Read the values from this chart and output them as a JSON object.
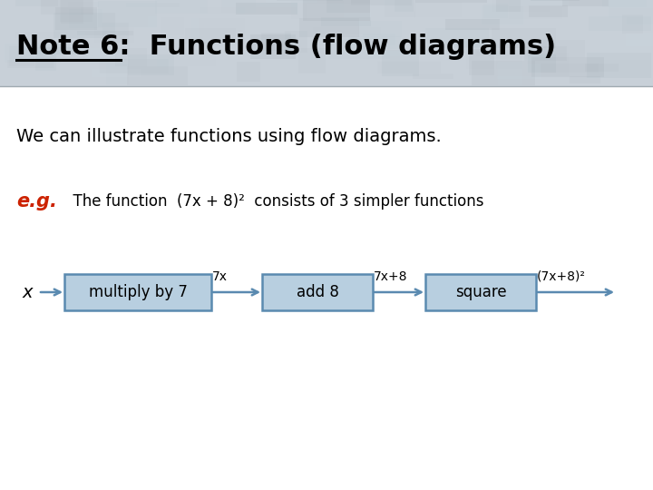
{
  "title": "Note 6:  Functions (flow diagrams)",
  "subtitle": "We can illustrate functions using flow diagrams.",
  "eg_label": "e.g.",
  "eg_text": "  The function  (7x + 8)²  consists of 3 simpler functions",
  "flow_x_label": "x",
  "boxes": [
    "multiply by 7",
    "add 8",
    "square"
  ],
  "arrow_labels": [
    "7x",
    "7x+8",
    "(7x+8)²"
  ],
  "box_facecolor": "#b8cfe0",
  "box_edgecolor": "#5a8ab0",
  "arrow_color": "#5a8ab0",
  "title_color": "#000000",
  "subtitle_color": "#000000",
  "eg_color": "#cc2200",
  "text_color": "#000000",
  "bg_color": "#ffffff",
  "header_bg": "#c8d4dc"
}
